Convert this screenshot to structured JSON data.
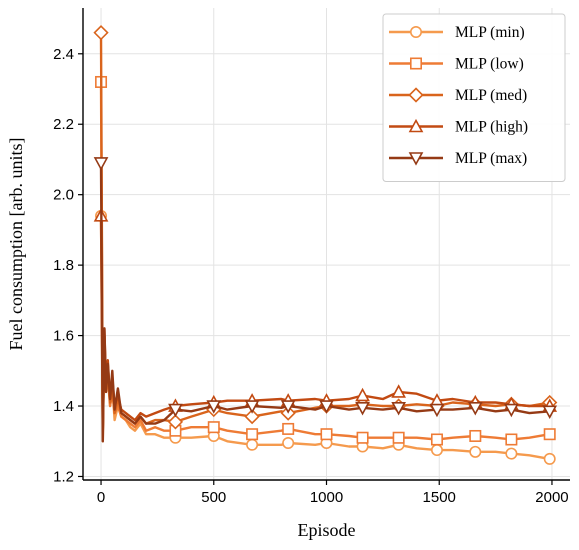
{
  "chart_data": {
    "type": "line",
    "xlabel": "Episode",
    "ylabel": "Fuel consumption [arb. units]",
    "xlim": [
      -80,
      2080
    ],
    "ylim": [
      1.19,
      2.53
    ],
    "xticks": [
      0,
      500,
      1000,
      1500,
      2000
    ],
    "yticks": [
      1.2,
      1.4,
      1.6,
      1.8,
      2.0,
      2.2,
      2.4
    ],
    "grid": true,
    "legend_position": "top-right",
    "series": [
      {
        "name": "MLP (min)",
        "color": "#f59a4d",
        "marker": "circle",
        "x": [
          0,
          8,
          15,
          22,
          30,
          40,
          50,
          60,
          75,
          90,
          110,
          130,
          150,
          175,
          200,
          240,
          280,
          330,
          400,
          500,
          560,
          670,
          800,
          830,
          950,
          1000,
          1100,
          1160,
          1250,
          1320,
          1400,
          1490,
          1560,
          1660,
          1750,
          1820,
          1900,
          1990
        ],
        "y": [
          1.94,
          1.3,
          1.6,
          1.44,
          1.52,
          1.4,
          1.46,
          1.36,
          1.4,
          1.37,
          1.36,
          1.34,
          1.33,
          1.35,
          1.32,
          1.32,
          1.31,
          1.31,
          1.31,
          1.315,
          1.3,
          1.29,
          1.29,
          1.295,
          1.29,
          1.295,
          1.285,
          1.285,
          1.28,
          1.29,
          1.28,
          1.275,
          1.275,
          1.27,
          1.27,
          1.265,
          1.26,
          1.25
        ],
        "marker_idx": [
          0,
          17,
          19,
          21,
          23,
          25,
          27,
          29,
          31,
          33,
          35,
          37
        ]
      },
      {
        "name": "MLP (low)",
        "color": "#ee7b35",
        "marker": "square",
        "x": [
          0,
          8,
          15,
          22,
          30,
          40,
          50,
          60,
          75,
          90,
          110,
          130,
          150,
          175,
          200,
          240,
          280,
          330,
          400,
          500,
          560,
          670,
          800,
          830,
          950,
          1000,
          1100,
          1160,
          1250,
          1320,
          1400,
          1490,
          1560,
          1660,
          1750,
          1820,
          1900,
          1990
        ],
        "y": [
          2.32,
          1.33,
          1.58,
          1.44,
          1.48,
          1.4,
          1.44,
          1.38,
          1.4,
          1.37,
          1.36,
          1.35,
          1.34,
          1.36,
          1.33,
          1.34,
          1.33,
          1.33,
          1.34,
          1.34,
          1.33,
          1.32,
          1.33,
          1.335,
          1.32,
          1.32,
          1.315,
          1.31,
          1.31,
          1.31,
          1.31,
          1.305,
          1.31,
          1.315,
          1.31,
          1.305,
          1.31,
          1.32
        ],
        "marker_idx": [
          0,
          17,
          19,
          21,
          23,
          25,
          27,
          29,
          31,
          33,
          35,
          37
        ]
      },
      {
        "name": "MLP (med)",
        "color": "#d9641c",
        "marker": "diamond",
        "x": [
          0,
          8,
          15,
          22,
          30,
          40,
          50,
          60,
          75,
          90,
          110,
          130,
          150,
          175,
          200,
          240,
          280,
          330,
          400,
          500,
          560,
          670,
          800,
          830,
          950,
          1000,
          1100,
          1160,
          1250,
          1320,
          1400,
          1490,
          1560,
          1660,
          1750,
          1820,
          1900,
          1990
        ],
        "y": [
          2.46,
          1.33,
          1.6,
          1.45,
          1.5,
          1.41,
          1.46,
          1.38,
          1.42,
          1.38,
          1.37,
          1.36,
          1.35,
          1.37,
          1.35,
          1.36,
          1.36,
          1.355,
          1.37,
          1.39,
          1.38,
          1.37,
          1.385,
          1.38,
          1.395,
          1.4,
          1.4,
          1.405,
          1.4,
          1.4,
          1.405,
          1.4,
          1.41,
          1.405,
          1.4,
          1.405,
          1.4,
          1.41
        ],
        "marker_idx": [
          0,
          17,
          19,
          21,
          23,
          25,
          27,
          29,
          31,
          33,
          35,
          37
        ]
      },
      {
        "name": "MLP (high)",
        "color": "#c24a12",
        "marker": "triangle-up",
        "x": [
          0,
          8,
          15,
          22,
          30,
          40,
          50,
          60,
          75,
          90,
          110,
          130,
          150,
          175,
          200,
          240,
          280,
          330,
          400,
          500,
          560,
          670,
          800,
          830,
          950,
          1000,
          1100,
          1160,
          1250,
          1320,
          1400,
          1490,
          1560,
          1660,
          1750,
          1820,
          1900,
          1990
        ],
        "y": [
          1.94,
          1.33,
          1.62,
          1.46,
          1.53,
          1.42,
          1.48,
          1.4,
          1.43,
          1.39,
          1.38,
          1.37,
          1.36,
          1.38,
          1.37,
          1.38,
          1.39,
          1.4,
          1.405,
          1.41,
          1.415,
          1.415,
          1.42,
          1.415,
          1.42,
          1.415,
          1.42,
          1.43,
          1.42,
          1.44,
          1.435,
          1.415,
          1.42,
          1.41,
          1.41,
          1.405,
          1.4,
          1.4
        ],
        "marker_idx": [
          0,
          17,
          19,
          21,
          23,
          25,
          27,
          29,
          31,
          33,
          35,
          37
        ]
      },
      {
        "name": "MLP (max)",
        "color": "#953a15",
        "marker": "triangle-down",
        "x": [
          0,
          8,
          15,
          22,
          30,
          40,
          50,
          60,
          75,
          90,
          110,
          130,
          150,
          175,
          200,
          240,
          280,
          330,
          400,
          500,
          560,
          670,
          800,
          830,
          950,
          1000,
          1100,
          1160,
          1250,
          1320,
          1400,
          1490,
          1560,
          1660,
          1750,
          1820,
          1900,
          1990
        ],
        "y": [
          2.09,
          1.3,
          1.62,
          1.44,
          1.52,
          1.42,
          1.5,
          1.39,
          1.45,
          1.38,
          1.37,
          1.36,
          1.35,
          1.37,
          1.35,
          1.35,
          1.36,
          1.39,
          1.385,
          1.4,
          1.39,
          1.4,
          1.395,
          1.4,
          1.39,
          1.4,
          1.39,
          1.395,
          1.39,
          1.395,
          1.385,
          1.39,
          1.39,
          1.395,
          1.385,
          1.39,
          1.38,
          1.385
        ],
        "marker_idx": [
          0,
          17,
          19,
          21,
          23,
          25,
          27,
          29,
          31,
          33,
          35,
          37
        ]
      }
    ]
  }
}
